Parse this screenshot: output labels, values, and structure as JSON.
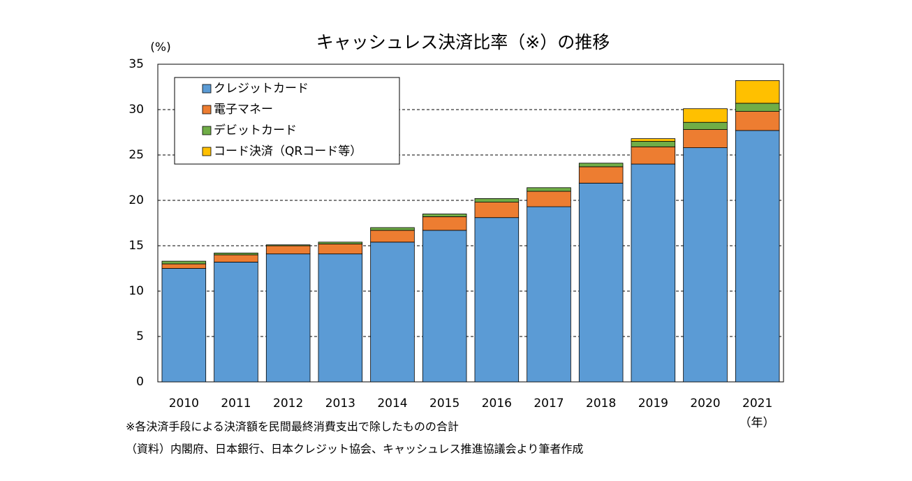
{
  "chart_data": {
    "type": "stacked-bar",
    "title": "キャッシュレス決済比率（※）の推移",
    "y_label": "(%)",
    "x_label": "（年）",
    "notes": [
      "※各決済手段による決済額を民間最終消費支出で除したものの合計",
      "（資料）内閣府、日本銀行、日本クレジット協会、キャッシュレス推進協議会より筆者作成"
    ],
    "categories": [
      "2010",
      "2011",
      "2012",
      "2013",
      "2014",
      "2015",
      "2016",
      "2017",
      "2018",
      "2019",
      "2020",
      "2021"
    ],
    "series": [
      {
        "name": "クレジットカード",
        "color": "#5b9bd5",
        "values": [
          12.5,
          13.2,
          14.1,
          14.1,
          15.4,
          16.7,
          18.1,
          19.3,
          21.9,
          24.0,
          25.8,
          27.7
        ]
      },
      {
        "name": "電子マネー",
        "color": "#ed7d31",
        "values": [
          0.5,
          0.8,
          0.9,
          1.1,
          1.3,
          1.5,
          1.7,
          1.7,
          1.8,
          1.9,
          2.0,
          2.1
        ]
      },
      {
        "name": "デビットカード",
        "color": "#70ad47",
        "values": [
          0.3,
          0.2,
          0.1,
          0.2,
          0.3,
          0.3,
          0.4,
          0.4,
          0.4,
          0.6,
          0.8,
          0.9
        ]
      },
      {
        "name": "コード決済（QRコード等）",
        "color": "#ffc000",
        "values": [
          0,
          0,
          0,
          0,
          0,
          0,
          0,
          0,
          0,
          0.3,
          1.5,
          2.5
        ]
      }
    ],
    "ylim": [
      0,
      35
    ],
    "yticks": [
      0,
      5,
      10,
      15,
      20,
      25,
      30,
      35
    ],
    "grid": true,
    "legend": "top-left"
  }
}
